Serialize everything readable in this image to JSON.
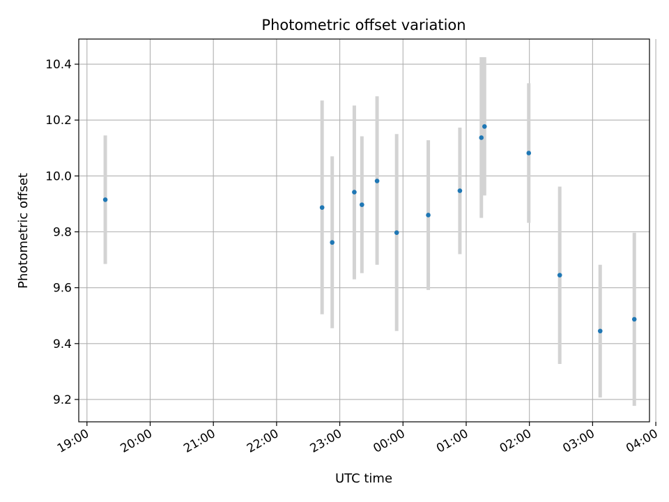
{
  "chart_data": {
    "type": "scatter",
    "title": "Photometric offset variation",
    "xlabel": "UTC time",
    "ylabel": "Photometric offset",
    "x_units": "hours since 19:00 UTC",
    "xlim": [
      -0.13,
      8.9
    ],
    "ylim": [
      9.12,
      10.49
    ],
    "grid": true,
    "x_ticks": [
      {
        "value": 0,
        "label": "19:00"
      },
      {
        "value": 1,
        "label": "20:00"
      },
      {
        "value": 2,
        "label": "21:00"
      },
      {
        "value": 3,
        "label": "22:00"
      },
      {
        "value": 4,
        "label": "23:00"
      },
      {
        "value": 5,
        "label": "00:00"
      },
      {
        "value": 6,
        "label": "01:00"
      },
      {
        "value": 7,
        "label": "02:00"
      },
      {
        "value": 8,
        "label": "03:00"
      },
      {
        "value": 9,
        "label": "04:00"
      }
    ],
    "y_ticks": [
      {
        "value": 9.2,
        "label": "9.2"
      },
      {
        "value": 9.4,
        "label": "9.4"
      },
      {
        "value": 9.6,
        "label": "9.6"
      },
      {
        "value": 9.8,
        "label": "9.8"
      },
      {
        "value": 10.0,
        "label": "10.0"
      },
      {
        "value": 10.2,
        "label": "10.2"
      },
      {
        "value": 10.4,
        "label": "10.4"
      }
    ],
    "colors": {
      "marker": "#1f77b4",
      "errorbar": "#d3d3d3",
      "grid": "#b0b0b0"
    },
    "points": [
      {
        "x": 0.29,
        "y": 9.915,
        "lo": 9.685,
        "hi": 10.145
      },
      {
        "x": 3.72,
        "y": 9.887,
        "lo": 9.505,
        "hi": 10.27
      },
      {
        "x": 3.88,
        "y": 9.762,
        "lo": 9.455,
        "hi": 10.07
      },
      {
        "x": 4.23,
        "y": 9.942,
        "lo": 9.63,
        "hi": 10.252
      },
      {
        "x": 4.35,
        "y": 9.897,
        "lo": 9.652,
        "hi": 10.142
      },
      {
        "x": 4.59,
        "y": 9.982,
        "lo": 9.682,
        "hi": 10.285
      },
      {
        "x": 4.9,
        "y": 9.797,
        "lo": 9.445,
        "hi": 10.15
      },
      {
        "x": 5.4,
        "y": 9.86,
        "lo": 9.592,
        "hi": 10.128
      },
      {
        "x": 5.9,
        "y": 9.947,
        "lo": 9.72,
        "hi": 10.173
      },
      {
        "x": 6.24,
        "y": 10.137,
        "lo": 9.85,
        "hi": 10.425
      },
      {
        "x": 6.29,
        "y": 10.177,
        "lo": 9.93,
        "hi": 10.425
      },
      {
        "x": 6.99,
        "y": 10.082,
        "lo": 9.832,
        "hi": 10.332
      },
      {
        "x": 7.48,
        "y": 9.645,
        "lo": 9.327,
        "hi": 9.962
      },
      {
        "x": 8.12,
        "y": 9.445,
        "lo": 9.207,
        "hi": 9.682
      },
      {
        "x": 8.66,
        "y": 9.487,
        "lo": 9.177,
        "hi": 9.797
      }
    ]
  }
}
